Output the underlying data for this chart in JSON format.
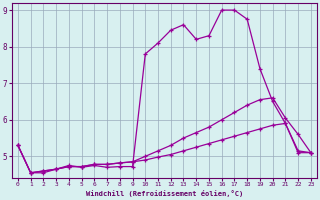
{
  "xlabel": "Windchill (Refroidissement éolien,°C)",
  "x": [
    0,
    1,
    2,
    3,
    4,
    5,
    6,
    7,
    8,
    9,
    10,
    11,
    12,
    13,
    14,
    15,
    16,
    17,
    18,
    19,
    20,
    21,
    22,
    23
  ],
  "line1": [
    5.3,
    4.55,
    4.55,
    4.65,
    4.75,
    4.7,
    4.75,
    4.7,
    4.72,
    4.72,
    7.8,
    8.1,
    8.45,
    8.6,
    8.2,
    8.3,
    9.0,
    9.0,
    8.75,
    7.4,
    6.5,
    5.9,
    5.15,
    5.1
  ],
  "line2": [
    5.3,
    4.55,
    4.6,
    4.65,
    4.72,
    4.72,
    4.78,
    4.78,
    4.82,
    4.85,
    5.0,
    5.15,
    5.3,
    5.5,
    5.65,
    5.8,
    6.0,
    6.2,
    6.4,
    6.55,
    6.6,
    6.05,
    5.6,
    5.1
  ],
  "line3": [
    5.3,
    4.55,
    4.6,
    4.65,
    4.72,
    4.72,
    4.78,
    4.78,
    4.82,
    4.85,
    4.9,
    4.98,
    5.05,
    5.15,
    5.25,
    5.35,
    5.45,
    5.55,
    5.65,
    5.75,
    5.85,
    5.9,
    5.1,
    5.1
  ],
  "line_color": "#990099",
  "bg_color": "#d8f0f0",
  "grid_color": "#99aabb",
  "axis_color": "#660066",
  "ylim": [
    4.4,
    9.2
  ],
  "xlim": [
    -0.5,
    23.5
  ],
  "yticks": [
    5,
    6,
    7,
    8,
    9
  ],
  "xticks": [
    0,
    1,
    2,
    3,
    4,
    5,
    6,
    7,
    8,
    9,
    10,
    11,
    12,
    13,
    14,
    15,
    16,
    17,
    18,
    19,
    20,
    21,
    22,
    23
  ]
}
